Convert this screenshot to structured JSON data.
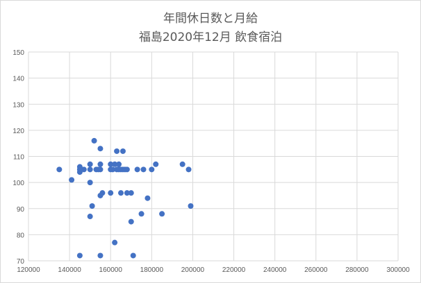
{
  "chart_data": {
    "type": "scatter",
    "title_lines": [
      "年間休日数と月給",
      "福島2020年12月  飲食宿泊"
    ],
    "xlabel": "",
    "ylabel": "",
    "xlim": [
      120000,
      300000
    ],
    "ylim": [
      70,
      150
    ],
    "x_ticks": [
      120000,
      140000,
      160000,
      180000,
      200000,
      220000,
      240000,
      260000,
      280000,
      300000
    ],
    "y_ticks": [
      70,
      80,
      90,
      100,
      110,
      120,
      130,
      140,
      150
    ],
    "x_tick_labels": [
      "120000",
      "140000",
      "160000",
      "180000",
      "200000",
      "220000",
      "240000",
      "260000",
      "280000",
      "300000"
    ],
    "y_tick_labels": [
      "70",
      "80",
      "90",
      "100",
      "110",
      "120",
      "130",
      "140",
      "150"
    ],
    "grid": true,
    "marker_color": "#4472c4",
    "points": [
      [
        135000,
        105
      ],
      [
        141000,
        101
      ],
      [
        145000,
        104
      ],
      [
        145000,
        105
      ],
      [
        145000,
        106
      ],
      [
        147000,
        105
      ],
      [
        145000,
        72
      ],
      [
        150000,
        105
      ],
      [
        150000,
        107
      ],
      [
        150000,
        100
      ],
      [
        150000,
        87
      ],
      [
        151000,
        91
      ],
      [
        152000,
        116
      ],
      [
        153000,
        105
      ],
      [
        154000,
        105
      ],
      [
        155000,
        105
      ],
      [
        155000,
        107
      ],
      [
        155000,
        113
      ],
      [
        155000,
        95
      ],
      [
        156000,
        96
      ],
      [
        155000,
        72
      ],
      [
        160000,
        107
      ],
      [
        160000,
        105
      ],
      [
        161000,
        105
      ],
      [
        160000,
        96
      ],
      [
        162000,
        107
      ],
      [
        163000,
        105
      ],
      [
        163000,
        112
      ],
      [
        164000,
        107
      ],
      [
        164000,
        105
      ],
      [
        165000,
        96
      ],
      [
        165000,
        105
      ],
      [
        166000,
        112
      ],
      [
        166000,
        105
      ],
      [
        167000,
        105
      ],
      [
        168000,
        96
      ],
      [
        168000,
        105
      ],
      [
        170000,
        96
      ],
      [
        170000,
        85
      ],
      [
        171000,
        72
      ],
      [
        173000,
        105
      ],
      [
        175000,
        88
      ],
      [
        176000,
        105
      ],
      [
        178000,
        94
      ],
      [
        180000,
        105
      ],
      [
        182000,
        107
      ],
      [
        185000,
        88
      ],
      [
        195000,
        107
      ],
      [
        198000,
        105
      ],
      [
        199000,
        91
      ],
      [
        162000,
        77
      ]
    ]
  }
}
